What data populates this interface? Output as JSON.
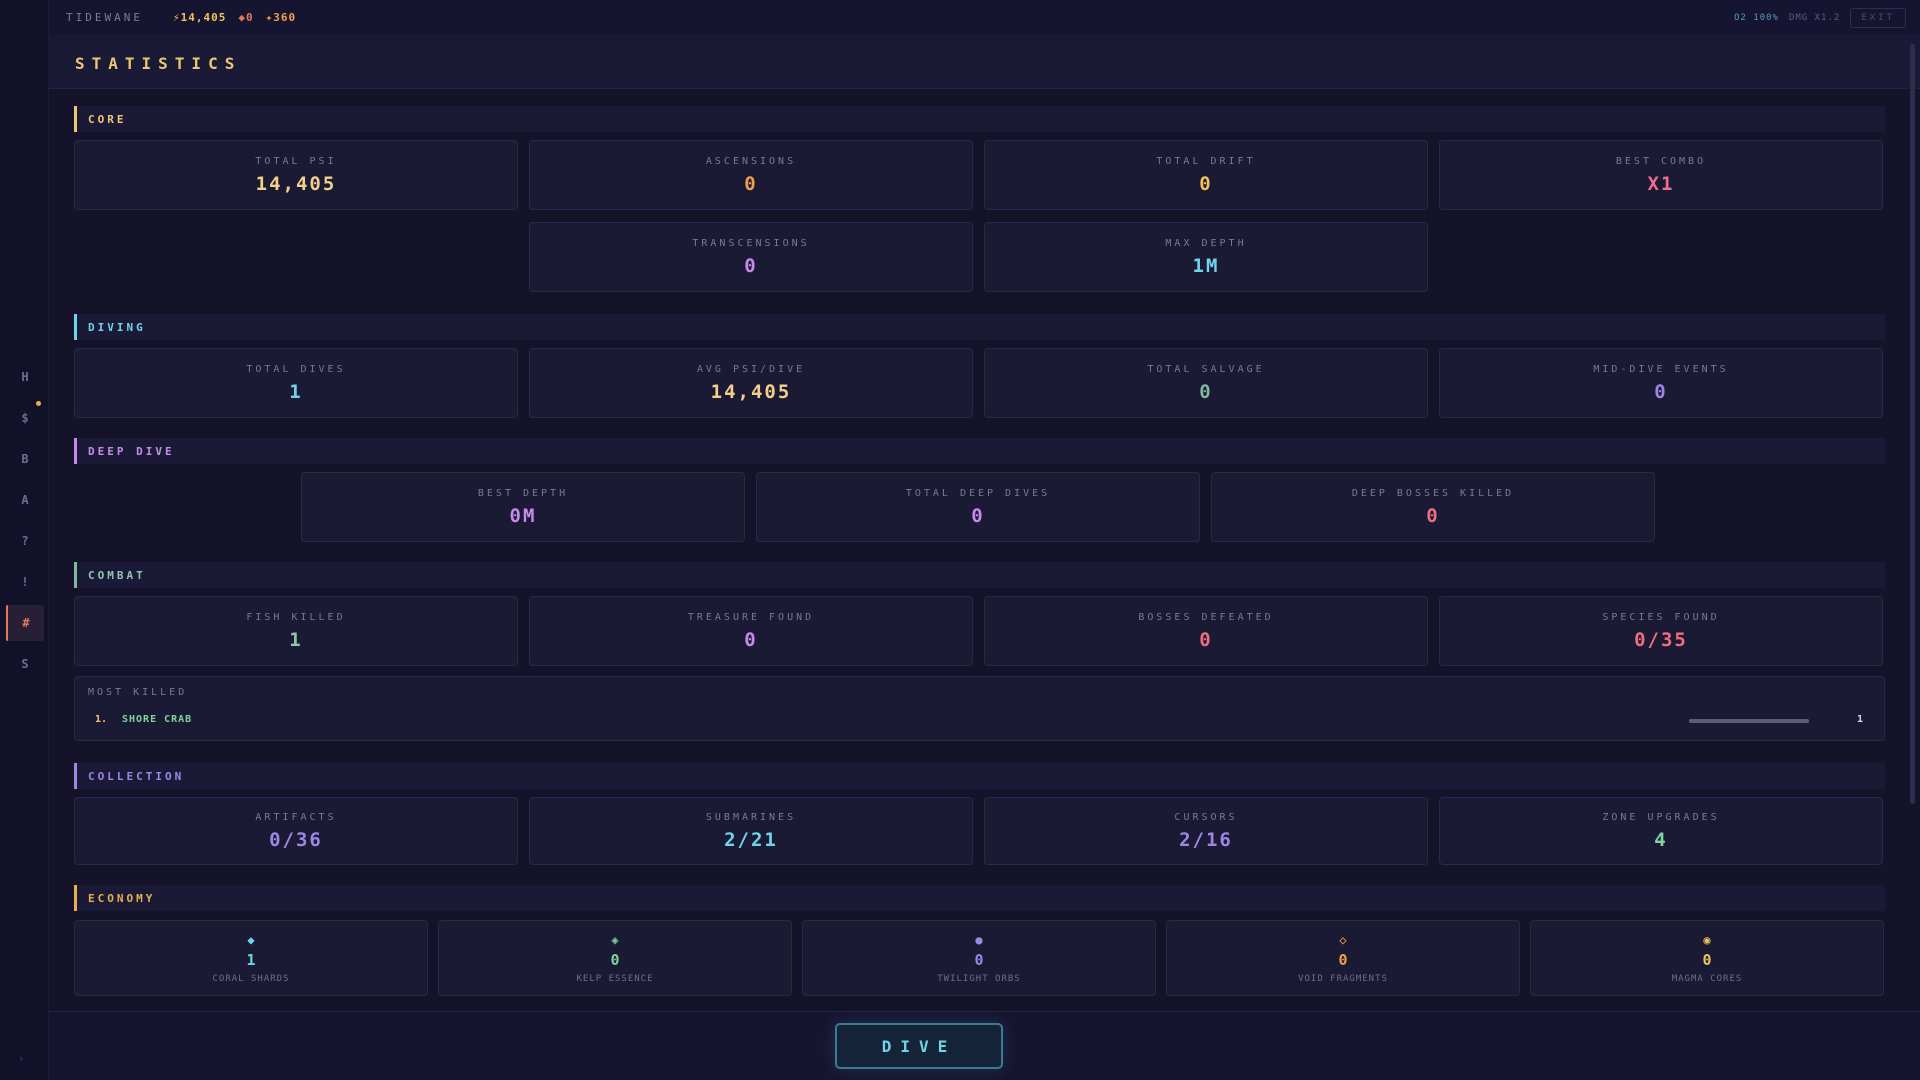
{
  "topbar": {
    "brand": "TIDEWANE",
    "resources": [
      {
        "icon": "bolt-icon",
        "text": "⚡14,405",
        "color": "#f0c35a"
      },
      {
        "icon": "diamond-icon",
        "text": "◆0",
        "color": "#e07a5f"
      },
      {
        "icon": "star-icon",
        "text": "✦360",
        "color": "#f0a04a"
      }
    ],
    "o2": "O2 100%",
    "dmg": "DMG X1.2",
    "exit": "EXIT"
  },
  "page_title": "STATISTICS",
  "sidebar": [
    "H",
    "$",
    "B",
    "A",
    "?",
    "!",
    "#",
    "S"
  ],
  "sidebar_collapse": "›",
  "sections": {
    "core": {
      "label": "CORE",
      "color": "#efc774"
    },
    "diving": {
      "label": "DIVING",
      "color": "#6fd4e8"
    },
    "deep_dive": {
      "label": "DEEP DIVE",
      "color": "#c58be8"
    },
    "combat": {
      "label": "COMBAT",
      "color": "#7fb89a"
    },
    "collection": {
      "label": "COLLECTION",
      "color": "#9d87e6"
    },
    "economy": {
      "label": "ECONOMY",
      "color": "#e8b04a"
    }
  },
  "stats": {
    "total_psi": {
      "label": "TOTAL PSI",
      "value": "14,405",
      "color": "#f3d08a"
    },
    "ascensions": {
      "label": "ASCENSIONS",
      "value": "0",
      "color": "#f0a04a"
    },
    "total_drift": {
      "label": "TOTAL DRIFT",
      "value": "0",
      "color": "#f0c35a"
    },
    "best_combo": {
      "label": "BEST COMBO",
      "value": "X1",
      "color": "#f06d8e"
    },
    "transcensions": {
      "label": "TRANSCENSIONS",
      "value": "0",
      "color": "#c58be8"
    },
    "max_depth": {
      "label": "MAX DEPTH",
      "value": "1M",
      "color": "#6fd4e8"
    },
    "total_dives": {
      "label": "TOTAL DIVES",
      "value": "1",
      "color": "#6fd4e8"
    },
    "avg_psi": {
      "label": "AVG PSI/DIVE",
      "value": "14,405",
      "color": "#f3d08a"
    },
    "total_salvage": {
      "label": "TOTAL SALVAGE",
      "value": "0",
      "color": "#7fb89a"
    },
    "mid_dive_events": {
      "label": "MID-DIVE EVENTS",
      "value": "0",
      "color": "#9d87e6"
    },
    "best_depth": {
      "label": "BEST DEPTH",
      "value": "0M",
      "color": "#c58be8"
    },
    "total_deep_dives": {
      "label": "TOTAL DEEP DIVES",
      "value": "0",
      "color": "#c58be8"
    },
    "deep_bosses": {
      "label": "DEEP BOSSES KILLED",
      "value": "0",
      "color": "#f06d7e"
    },
    "fish_killed": {
      "label": "FISH KILLED",
      "value": "1",
      "color": "#8fc4a8"
    },
    "treasure_found": {
      "label": "TREASURE FOUND",
      "value": "0",
      "color": "#c58be8"
    },
    "bosses_defeated": {
      "label": "BOSSES DEFEATED",
      "value": "0",
      "color": "#f06d7e"
    },
    "species_found": {
      "label": "SPECIES FOUND",
      "value": "0/35",
      "color": "#f06d7e"
    },
    "artifacts": {
      "label": "ARTIFACTS",
      "value": "0/36",
      "color": "#9d87e6"
    },
    "submarines": {
      "label": "SUBMARINES",
      "value": "2/21",
      "color": "#6fd4e8"
    },
    "cursors": {
      "label": "CURSORS",
      "value": "2/16",
      "color": "#9d87e6"
    },
    "zone_upgrades": {
      "label": "ZONE UPGRADES",
      "value": "4",
      "color": "#7fd4a1"
    }
  },
  "most_killed": {
    "title": "MOST KILLED",
    "items": [
      {
        "rank": "1.",
        "name": "SHORE CRAB",
        "count": "1",
        "fraction": 1.0
      }
    ]
  },
  "economy": [
    {
      "icon": "◆",
      "icon_name": "coral-shard-icon",
      "value": "1",
      "label": "CORAL SHARDS",
      "color": "#6fd4e8"
    },
    {
      "icon": "◈",
      "icon_name": "kelp-essence-icon",
      "value": "0",
      "label": "KELP ESSENCE",
      "color": "#7fd4a1"
    },
    {
      "icon": "●",
      "icon_name": "twilight-orb-icon",
      "value": "0",
      "label": "TWILIGHT ORBS",
      "color": "#9d87e6"
    },
    {
      "icon": "◇",
      "icon_name": "void-fragment-icon",
      "value": "0",
      "label": "VOID FRAGMENTS",
      "color": "#f0a04a"
    },
    {
      "icon": "◉",
      "icon_name": "magma-core-icon",
      "value": "0",
      "label": "MAGMA CORES",
      "color": "#f0c35a"
    }
  ],
  "dive_button": "DIVE"
}
